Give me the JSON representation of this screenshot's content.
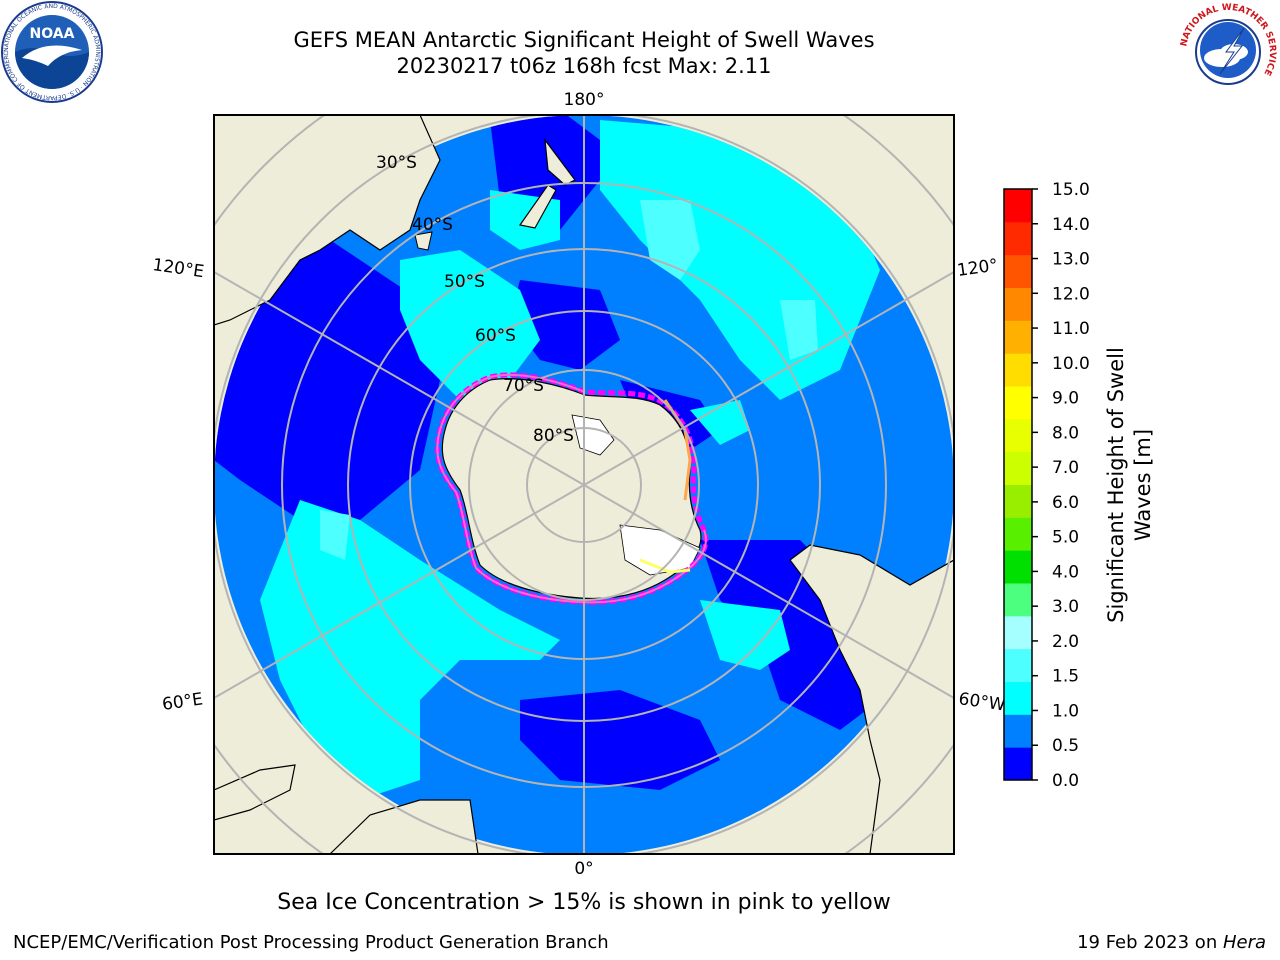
{
  "header": {
    "title_line1": "GEFS MEAN Antarctic Significant Height of Swell Waves",
    "title_line2": "20230217 t06z 168h fcst   Max: 2.11"
  },
  "logos": {
    "noaa": {
      "icon": "noaa-logo",
      "text": "NOAA",
      "ring_text": "NATIONAL OCEANIC AND ATMOSPHERIC ADMINISTRATION · U.S. DEPARTMENT OF COMMERCE"
    },
    "nws": {
      "icon": "nws-logo",
      "ring_text": "NATIONAL WEATHER SERVICE"
    }
  },
  "map": {
    "projection": "south-polar-stereographic",
    "colors": {
      "land": "#eeedd9",
      "ocean_fill": "#007fff",
      "grid": "#b4b4b4"
    },
    "longitude_labels": {
      "top": "180°",
      "bottom": "0°",
      "upper_left": "120°E",
      "upper_right": "120°",
      "lower_left": "60°E",
      "lower_right": "60°W"
    },
    "latitude_labels": [
      "30°S",
      "40°S",
      "50°S",
      "60°S",
      "70°S",
      "80°S"
    ],
    "sea_ice_colors": [
      "#ff00ff",
      "#ff66cc",
      "#ffa64d",
      "#ffff66"
    ]
  },
  "colorbar": {
    "label_line1": "Significant Height of Swell",
    "label_line2": "Waves [m]",
    "ticks": [
      "0.0",
      "0.5",
      "1.0",
      "1.5",
      "2.0",
      "3.0",
      "4.0",
      "5.0",
      "6.0",
      "7.0",
      "8.0",
      "9.0",
      "10.0",
      "11.0",
      "12.0",
      "13.0",
      "14.0",
      "15.0"
    ],
    "colors": [
      "#0000ff",
      "#007fff",
      "#00ffff",
      "#4dffff",
      "#a5ffff",
      "#4dff7f",
      "#00e000",
      "#58f000",
      "#99ee00",
      "#ccff00",
      "#e7ff00",
      "#ffff00",
      "#ffdd00",
      "#ffb000",
      "#ff8800",
      "#ff5500",
      "#ff2a00",
      "#ff0000"
    ]
  },
  "caption": "Sea Ice Concentration > 15% is shown in pink to yellow",
  "footer": {
    "left": "NCEP/EMC/Verification Post Processing Product Generation Branch",
    "right_prefix": "19 Feb 2023 on ",
    "right_host": "Hera"
  }
}
